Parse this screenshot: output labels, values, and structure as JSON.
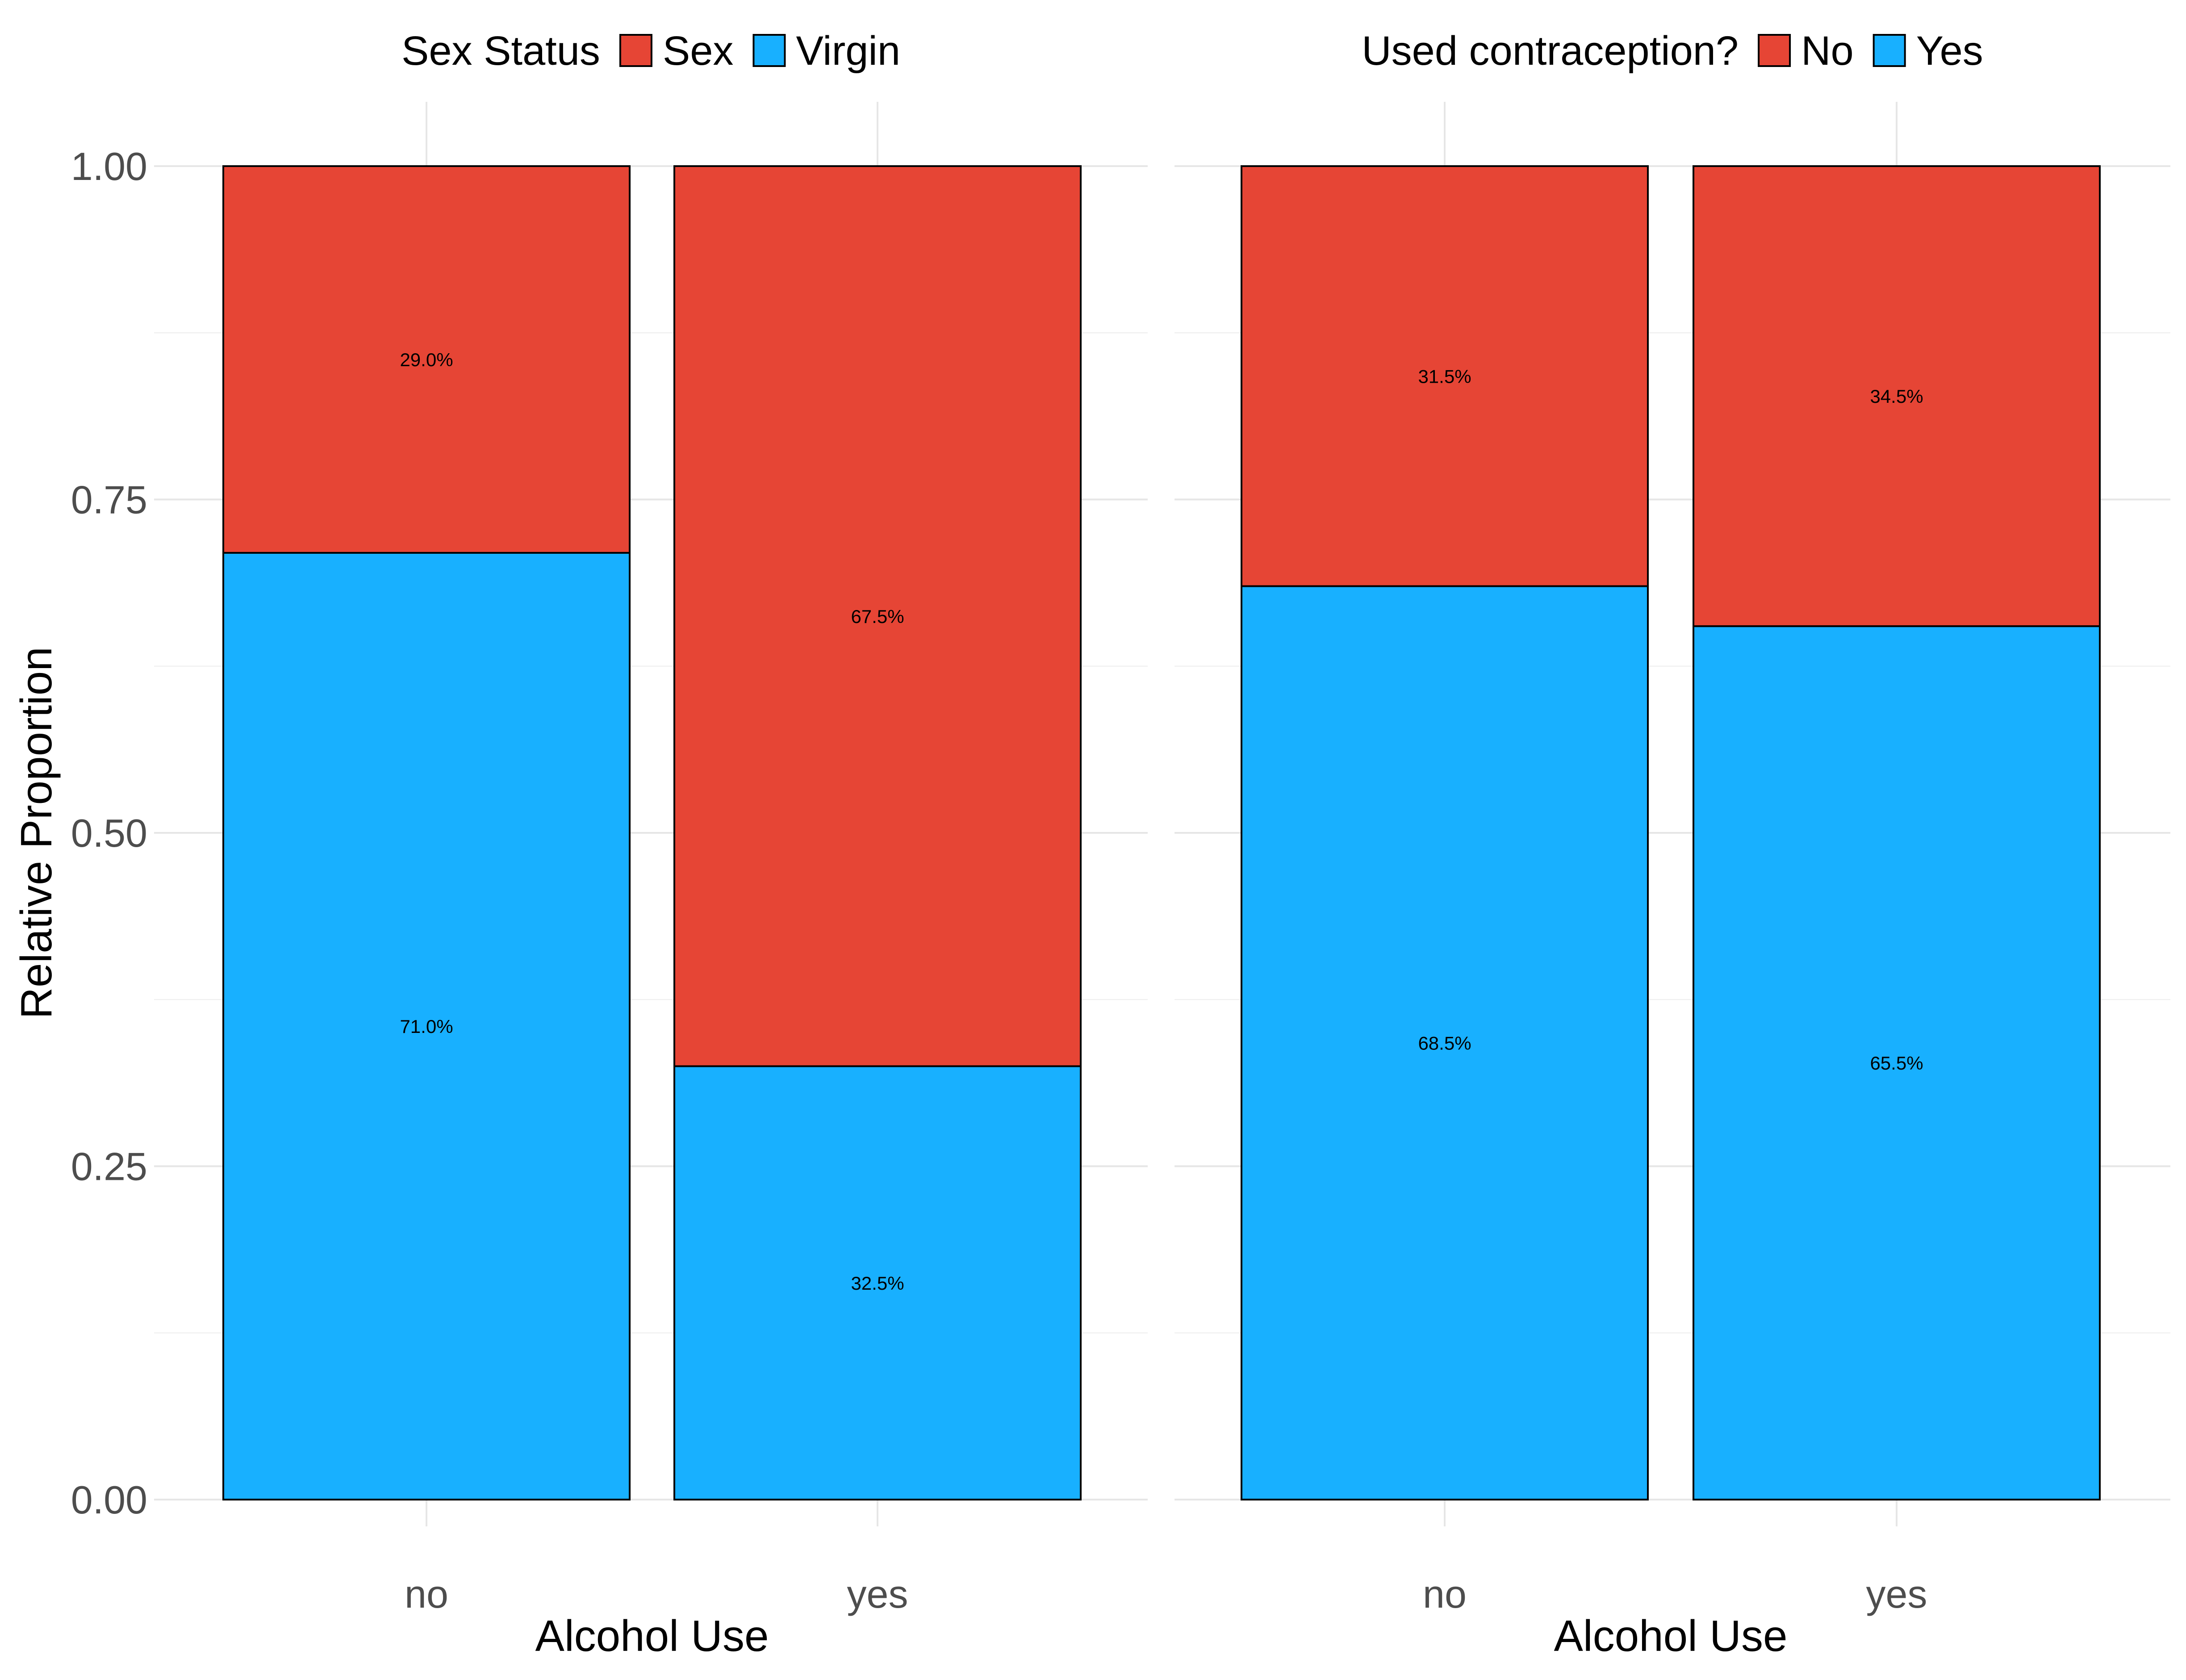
{
  "chart_data": [
    {
      "type": "bar",
      "stacked": "proportion",
      "legend": {
        "title": "Sex Status",
        "position": "top",
        "entries": [
          {
            "name": "Sex",
            "color": "#E64535"
          },
          {
            "name": "Virgin",
            "color": "#18B0FF"
          }
        ]
      },
      "xlabel": "Alcohol Use",
      "ylabel": "Relative Proportion",
      "ylim": [
        0,
        1
      ],
      "yticks": [
        "0.00",
        "0.25",
        "0.50",
        "0.75",
        "1.00"
      ],
      "grid": true,
      "categories": [
        "no",
        "yes"
      ],
      "series": [
        {
          "name": "Virgin",
          "values": [
            0.71,
            0.325
          ],
          "labels": [
            "71.0%",
            "32.5%"
          ]
        },
        {
          "name": "Sex",
          "values": [
            0.29,
            0.675
          ],
          "labels": [
            "29.0%",
            "67.5%"
          ]
        }
      ]
    },
    {
      "type": "bar",
      "stacked": "proportion",
      "legend": {
        "title": "Used contraception?",
        "position": "top",
        "entries": [
          {
            "name": "No",
            "color": "#E64535"
          },
          {
            "name": "Yes",
            "color": "#18B0FF"
          }
        ]
      },
      "xlabel": "Alcohol Use",
      "ylabel": "",
      "ylim": [
        0,
        1
      ],
      "grid": true,
      "categories": [
        "no",
        "yes"
      ],
      "series": [
        {
          "name": "Yes",
          "values": [
            0.685,
            0.655
          ],
          "labels": [
            "68.5%",
            "65.5%"
          ]
        },
        {
          "name": "No",
          "values": [
            0.315,
            0.345
          ],
          "labels": [
            "31.5%",
            "34.5%"
          ]
        }
      ]
    }
  ]
}
